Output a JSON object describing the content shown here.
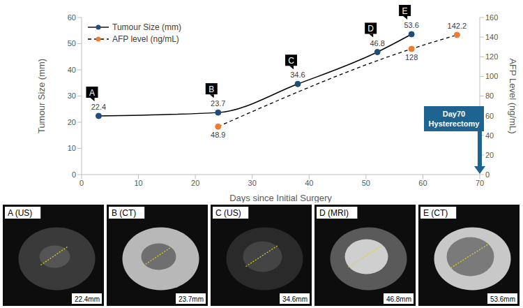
{
  "chart_data": {
    "type": "line",
    "x_label": "Days since Initial Surgery",
    "y_label": "Tumour Size (mm)",
    "y2_label": "AFP Level (ng/mL)",
    "xlim": [
      0,
      70
    ],
    "xticks": [
      0,
      10,
      20,
      30,
      40,
      50,
      60,
      70
    ],
    "ylim": [
      0,
      60
    ],
    "yticks": [
      0,
      10,
      20,
      30,
      40,
      50,
      60
    ],
    "y2lim": [
      0,
      160
    ],
    "y2ticks": [
      0,
      20,
      40,
      60,
      80,
      100,
      120,
      140,
      160
    ],
    "legend": "upper left",
    "data_labels": true,
    "grid": false,
    "series": [
      {
        "name": "Tumour Size (mm)",
        "color": "#1f4e79",
        "marker": "circle",
        "line_style": "solid",
        "x": [
          3,
          24,
          38,
          52,
          58
        ],
        "values": [
          22.4,
          23.7,
          34.6,
          46.8,
          53.6
        ],
        "point_labels": [
          "A",
          "B",
          "C",
          "D",
          "E"
        ]
      },
      {
        "name": "AFP level (ng/mL)",
        "color": "#ed7d31",
        "marker": "circle",
        "line_style": "dashed",
        "axis": "y2",
        "x": [
          24,
          58,
          66
        ],
        "values": [
          48.9,
          128,
          142.2
        ]
      }
    ],
    "annotations": [
      {
        "text": "Day70 Hysterectomy",
        "x": 70
      }
    ]
  },
  "images": [
    {
      "label": "A (US)",
      "measurement": "22.4mm"
    },
    {
      "label": "B (CT)",
      "measurement": "23.7mm"
    },
    {
      "label": "C (US)",
      "measurement": "34.6mm"
    },
    {
      "label": "D (MRI)",
      "measurement": "46.8mm"
    },
    {
      "label": "E (CT)",
      "measurement": "53.6mm"
    }
  ]
}
